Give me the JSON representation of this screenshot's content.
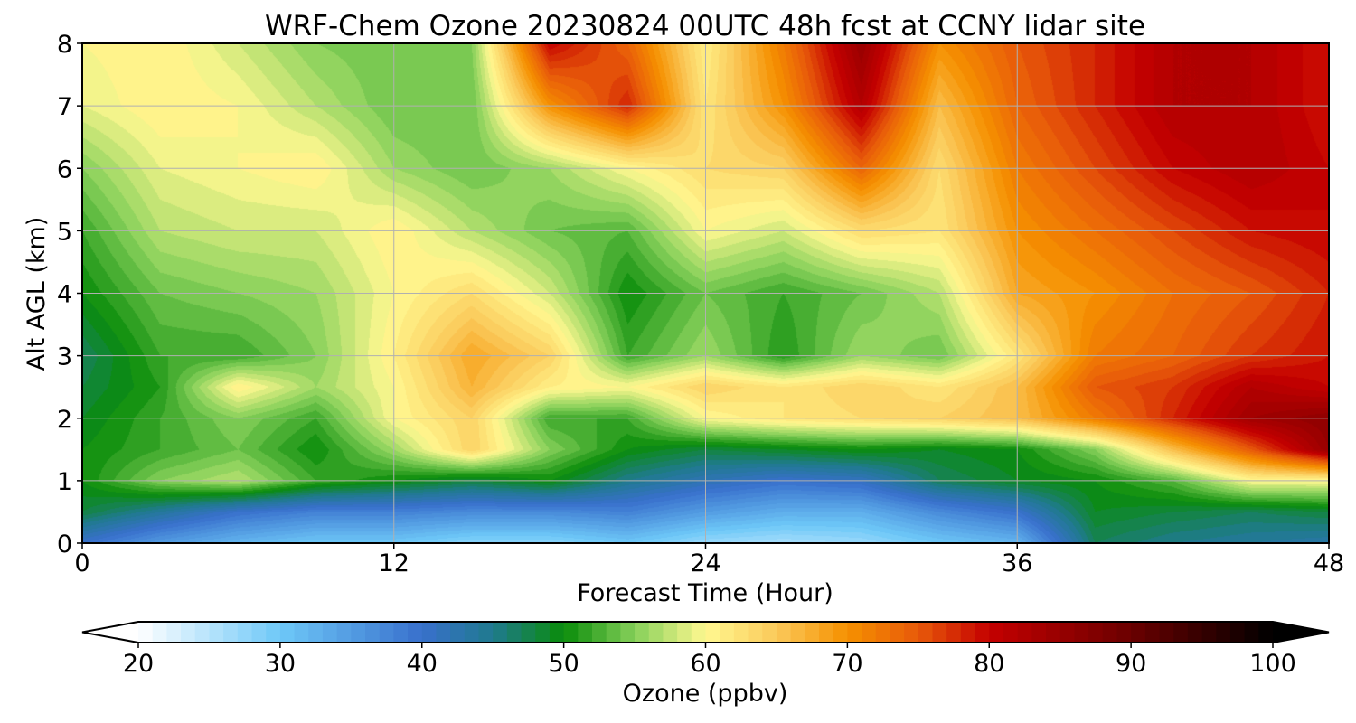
{
  "chart_data": {
    "type": "heatmap",
    "title": "WRF-Chem Ozone  20230824 00UTC 48h fcst at CCNY lidar site",
    "xlabel": "Forecast Time (Hour)",
    "ylabel": "Alt AGL (km)",
    "xlim": [
      0,
      48
    ],
    "ylim": [
      0,
      8
    ],
    "x_ticks": [
      "0",
      "12",
      "24",
      "36",
      "48"
    ],
    "y_ticks": [
      "0",
      "1",
      "2",
      "3",
      "4",
      "5",
      "6",
      "7",
      "8"
    ],
    "grid": true,
    "x": [
      0,
      3,
      6,
      9,
      12,
      15,
      18,
      21,
      24,
      27,
      30,
      33,
      36,
      39,
      42,
      45,
      48
    ],
    "y": [
      0,
      0.5,
      1,
      1.5,
      2,
      2.5,
      3,
      4,
      5,
      6,
      7,
      8
    ],
    "z": [
      [
        40,
        35,
        32,
        30,
        30,
        28,
        28,
        30,
        27,
        26,
        27,
        30,
        32,
        47,
        45,
        44,
        43
      ],
      [
        48,
        44,
        40,
        38,
        38,
        37,
        37,
        38,
        35,
        33,
        33,
        37,
        40,
        49,
        48,
        47,
        48
      ],
      [
        50,
        55,
        57,
        52,
        50,
        48,
        50,
        45,
        42,
        40,
        41,
        47,
        49,
        50,
        53,
        60,
        60
      ],
      [
        50,
        52,
        54,
        50,
        56,
        64,
        55,
        50,
        48,
        49,
        50,
        49,
        50,
        55,
        66,
        75,
        85
      ],
      [
        49,
        52,
        55,
        52,
        60,
        64,
        52,
        52,
        60,
        62,
        63,
        64,
        66,
        72,
        78,
        84,
        86
      ],
      [
        48,
        51,
        61,
        56,
        60,
        67,
        61,
        60,
        64,
        62,
        64,
        62,
        66,
        75,
        77,
        82,
        80
      ],
      [
        47,
        52,
        52,
        55,
        61,
        68,
        64,
        52,
        56,
        51,
        56,
        54,
        62,
        72,
        74,
        77,
        79
      ],
      [
        50,
        54,
        55,
        56,
        60,
        63,
        58,
        50,
        54,
        52,
        54,
        57,
        68,
        70,
        73,
        75,
        78
      ],
      [
        52,
        57,
        58,
        58,
        61,
        57,
        54,
        53,
        60,
        58,
        63,
        62,
        70,
        73,
        76,
        79,
        80
      ],
      [
        55,
        59,
        60,
        61,
        56,
        54,
        56,
        60,
        63,
        64,
        74,
        63,
        72,
        76,
        80,
        82,
        80
      ],
      [
        59,
        61,
        60,
        57,
        54,
        54,
        70,
        78,
        62,
        70,
        82,
        66,
        74,
        78,
        82,
        82,
        79
      ],
      [
        60,
        61,
        58,
        55,
        54,
        55,
        80,
        74,
        61,
        72,
        85,
        70,
        75,
        78,
        82,
        82,
        79
      ]
    ],
    "colorbar": {
      "label": "Ozone  (ppbv)",
      "min": 20,
      "max": 100,
      "step": 1,
      "extend": "both",
      "ticks": [
        "20",
        "30",
        "40",
        "50",
        "60",
        "70",
        "80",
        "90",
        "100"
      ],
      "stops": [
        {
          "v": 20,
          "c": "#ffffff"
        },
        {
          "v": 30,
          "c": "#6ec8f8"
        },
        {
          "v": 40,
          "c": "#3870cc"
        },
        {
          "v": 45,
          "c": "#1f7a8e"
        },
        {
          "v": 50,
          "c": "#0a8c0a"
        },
        {
          "v": 55,
          "c": "#86d05a"
        },
        {
          "v": 60,
          "c": "#fff890"
        },
        {
          "v": 65,
          "c": "#fbc95a"
        },
        {
          "v": 70,
          "c": "#f59000"
        },
        {
          "v": 75,
          "c": "#e85a0a"
        },
        {
          "v": 80,
          "c": "#c40000"
        },
        {
          "v": 90,
          "c": "#6a0000"
        },
        {
          "v": 100,
          "c": "#000000"
        }
      ]
    }
  }
}
